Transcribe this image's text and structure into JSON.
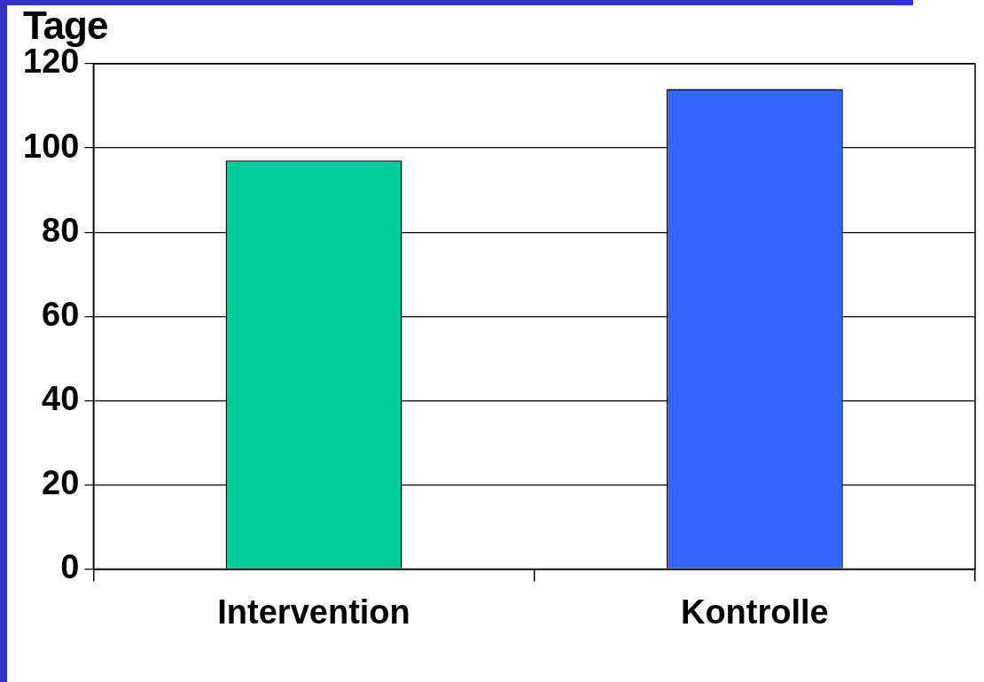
{
  "chart_data": {
    "type": "bar",
    "ylabel": "Tage",
    "categories": [
      "Intervention",
      "Kontrolle"
    ],
    "values": [
      97,
      114
    ],
    "colors": [
      "#00cc99",
      "#3366ff"
    ],
    "ylim": [
      0,
      120
    ],
    "yticks": [
      0,
      20,
      40,
      60,
      80,
      100,
      120
    ],
    "grid": "y",
    "legend": false
  }
}
